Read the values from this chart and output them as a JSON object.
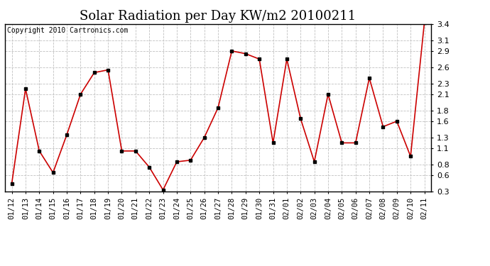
{
  "title": "Solar Radiation per Day KW/m2 20100211",
  "copyright": "Copyright 2010 Cartronics.com",
  "dates": [
    "01/12",
    "01/13",
    "01/14",
    "01/15",
    "01/16",
    "01/17",
    "01/18",
    "01/19",
    "01/20",
    "01/21",
    "01/22",
    "01/23",
    "01/24",
    "01/25",
    "01/26",
    "01/27",
    "01/28",
    "01/29",
    "01/30",
    "01/31",
    "02/01",
    "02/02",
    "02/03",
    "02/04",
    "02/05",
    "02/06",
    "02/07",
    "02/08",
    "02/09",
    "02/10",
    "02/11"
  ],
  "values": [
    0.45,
    2.2,
    1.05,
    0.65,
    1.35,
    2.1,
    2.5,
    2.55,
    1.05,
    1.05,
    0.75,
    0.33,
    0.85,
    0.88,
    1.3,
    1.85,
    2.9,
    2.85,
    2.75,
    1.2,
    2.75,
    1.65,
    0.85,
    2.1,
    1.2,
    1.2,
    2.4,
    1.5,
    1.6,
    0.95,
    3.42
  ],
  "line_color": "#cc0000",
  "marker": "s",
  "marker_size": 2.5,
  "marker_color": "#000000",
  "ylim_min": 0.3,
  "ylim_max": 3.4,
  "yticks": [
    0.3,
    0.6,
    0.8,
    1.1,
    1.3,
    1.6,
    1.8,
    2.1,
    2.3,
    2.6,
    2.9,
    3.1,
    3.4
  ],
  "background_color": "#ffffff",
  "grid_color": "#c0c0c0",
  "title_fontsize": 13,
  "copyright_fontsize": 7,
  "tick_fontsize": 7.5,
  "ytick_fontsize": 8
}
